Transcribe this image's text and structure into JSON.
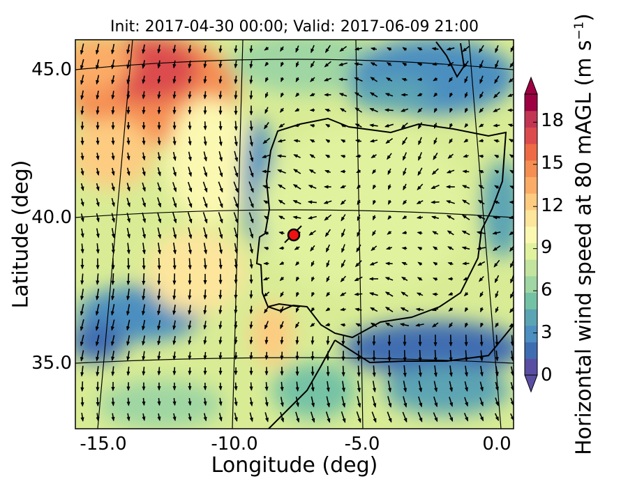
{
  "map": {
    "title": "Init: 2017-04-30 00:00; Valid: 2017-06-09 21:00",
    "xlabel": "Longitude (deg)",
    "ylabel": "Latitude (deg)",
    "x_ticks": [
      "-15.0",
      "-10.0",
      "-5.0",
      "0.0"
    ],
    "y_ticks": [
      "45.0",
      "40.0",
      "35.0"
    ],
    "extent": {
      "lon": [
        -16.0,
        0.2
      ],
      "lat": [
        32.8,
        46.0
      ]
    },
    "site_marker": {
      "lon": -7.6,
      "lat": 39.4,
      "color": "#ee1111"
    },
    "background_color": "#d9ec95"
  },
  "colorbar": {
    "label_main": "Horizontal wind speed at 80 mAGL (m s",
    "label_sup": "−1",
    "label_close": ")",
    "ticks": [
      "0",
      "3",
      "6",
      "9",
      "12",
      "15",
      "18"
    ],
    "tick_values": [
      0,
      3,
      6,
      9,
      12,
      15,
      18
    ],
    "range": [
      0,
      20
    ],
    "extend": "both",
    "colors": [
      "#5a4ea2",
      "#3f6db1",
      "#4c8fc0",
      "#5ba4b3",
      "#74c2a5",
      "#9fd6a3",
      "#c2e49f",
      "#e0f29e",
      "#fbf8b1",
      "#fde59c",
      "#fdcc81",
      "#fbac66",
      "#f58e53",
      "#ee6b45",
      "#dc4b4e",
      "#c23654",
      "#9e0142"
    ]
  }
}
